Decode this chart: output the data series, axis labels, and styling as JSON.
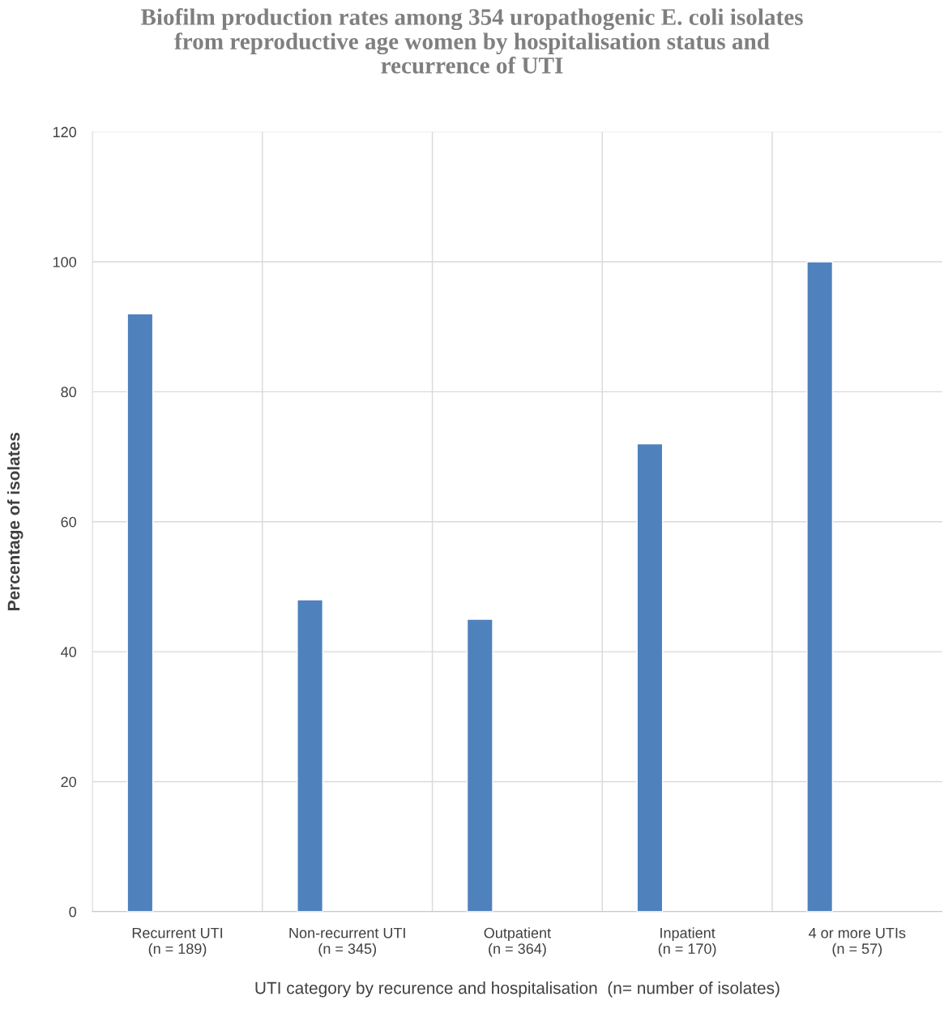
{
  "chart_data": {
    "type": "bar",
    "title": "Biofilm production rates among 354 uropathogenic E. coli isolates\nfrom reproductive age women by hospitalisation status and\nrecurrence of UTI",
    "xlabel": "UTI category by recurence and hospitalisation  (n= number of isolates)",
    "ylabel": "Percentage of isolates",
    "categories": [
      "Recurrent UTI\n(n = 189)",
      "Non-recurrent UTI\n(n = 345)",
      "Outpatient\n(n = 364)",
      "Inpatient\n(n = 170)",
      "4 or more UTIs\n(n = 57)"
    ],
    "values": [
      92,
      48,
      45,
      72,
      100
    ],
    "color": "#4f81bd",
    "ylim": [
      0,
      120
    ],
    "yticks": [
      0,
      20,
      40,
      60,
      80,
      100,
      120
    ],
    "grid": true,
    "legend": false
  }
}
